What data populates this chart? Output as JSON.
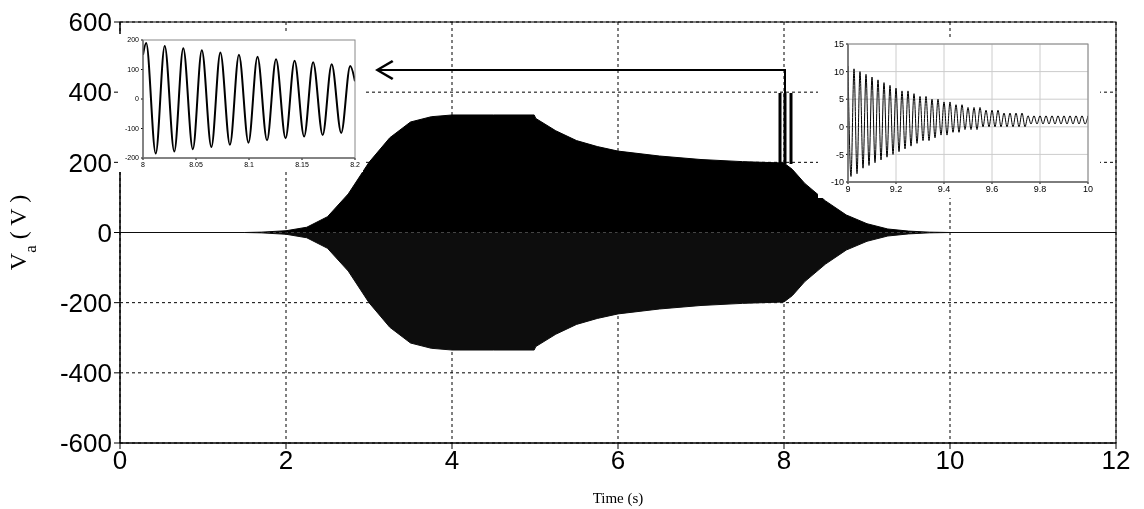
{
  "chart_data": [
    {
      "type": "area",
      "xlabel": "Time (s)",
      "ylabel": "V$_{a}$ ( V )",
      "x": [
        0,
        1.5,
        1.7,
        2,
        2.25,
        2.5,
        2.75,
        3,
        3.25,
        3.5,
        3.75,
        4,
        4.5,
        4.99,
        5.01,
        5.25,
        5.5,
        5.75,
        6,
        6.5,
        7,
        7.5,
        8,
        8.1,
        8.25,
        8.5,
        8.75,
        9,
        9.25,
        9.5,
        9.75,
        10,
        12
      ],
      "series": [
        {
          "color": "#000000",
          "values": [
            0,
            0,
            1,
            5,
            15,
            45,
            110,
            200,
            270,
            315,
            330,
            335,
            335,
            335,
            325,
            290,
            262,
            245,
            232,
            218,
            208,
            202,
            198,
            180,
            140,
            90,
            50,
            25,
            10,
            4,
            1,
            0,
            0
          ]
        },
        {
          "color": "#0d0d0d",
          "values": [
            0,
            0,
            -1,
            -5,
            -15,
            -45,
            -110,
            -200,
            -270,
            -315,
            -330,
            -335,
            -335,
            -335,
            -325,
            -290,
            -262,
            -245,
            -232,
            -218,
            -208,
            -202,
            -198,
            -180,
            -140,
            -90,
            -50,
            -25,
            -10,
            -4,
            -1,
            0,
            0
          ]
        }
      ],
      "xlim": [
        0,
        12
      ],
      "xticks": [
        0,
        2,
        4,
        6,
        8,
        10,
        12
      ],
      "ylim": [
        -600,
        600
      ],
      "yticks": [
        -600,
        -400,
        -200,
        0,
        200,
        400,
        600
      ],
      "grid": true
    },
    {
      "type": "line",
      "x": [
        8,
        8.003,
        8.012,
        8.0205,
        8.0295,
        8.038,
        8.047,
        8.0555,
        8.0645,
        8.073,
        8.082,
        8.0905,
        8.0995,
        8.108,
        8.117,
        8.1255,
        8.1345,
        8.143,
        8.152,
        8.1605,
        8.1695,
        8.178,
        8.187,
        8.1955,
        8.2
      ],
      "series": [
        {
          "color": "#000000",
          "values": [
            150,
            190,
            -185,
            180,
            -178,
            172,
            -170,
            165,
            -163,
            158,
            -155,
            150,
            -148,
            143,
            -140,
            135,
            -133,
            130,
            -127,
            125,
            -122,
            118,
            -115,
            112,
            60
          ]
        }
      ],
      "xlim": [
        8,
        8.2
      ],
      "xticks": [
        8,
        8.05,
        8.1,
        8.15,
        8.2
      ],
      "ylim": [
        -200,
        200
      ],
      "yticks": [
        -200,
        -100,
        0,
        100,
        200
      ]
    },
    {
      "type": "line",
      "x": [
        9,
        9.0125,
        9.025,
        9.0375,
        9.05,
        9.0625,
        9.075,
        9.0875,
        9.1,
        9.1125,
        9.125,
        9.1375,
        9.15,
        9.1625,
        9.175,
        9.1875,
        9.2,
        9.2125,
        9.225,
        9.2375,
        9.25,
        9.2625,
        9.275,
        9.2875,
        9.3,
        9.3125,
        9.325,
        9.3375,
        9.35,
        9.3625,
        9.375,
        9.3875,
        9.4,
        9.4125,
        9.425,
        9.4375,
        9.45,
        9.4625,
        9.475,
        9.4875,
        9.5,
        9.5125,
        9.525,
        9.5375,
        9.55,
        9.5625,
        9.575,
        9.5875,
        9.6,
        9.6125,
        9.625,
        9.6375,
        9.65,
        9.6625,
        9.675,
        9.6875,
        9.7,
        9.7125,
        9.725,
        9.7375,
        9.75,
        9.7625,
        9.775,
        9.7875,
        9.8,
        9.8125,
        9.825,
        9.8375,
        9.85,
        9.8625,
        9.875,
        9.8875,
        9.9,
        9.9125,
        9.925,
        9.9375,
        9.95,
        9.9625,
        9.975,
        9.9875,
        10
      ],
      "series": [
        {
          "color": "#000000",
          "values": [
            11,
            -9,
            10.5,
            -8.5,
            10,
            -7.5,
            9.5,
            -7,
            9,
            -6.5,
            8.5,
            -6,
            8,
            -5.5,
            7.5,
            -5,
            7,
            -4.5,
            6.5,
            -4,
            6.5,
            -3.5,
            6,
            -3,
            5.5,
            -2.5,
            5.5,
            -2.5,
            5,
            -2,
            5,
            -1.5,
            4.5,
            -1.5,
            4.5,
            -1,
            4,
            -1,
            4,
            -0.5,
            3.5,
            -0.5,
            3.5,
            -0.5,
            3.5,
            0,
            3,
            0,
            3,
            0,
            3,
            0,
            2.5,
            0,
            2.5,
            0,
            2.5,
            0,
            2.5,
            0,
            2,
            0.5,
            2,
            0.5,
            2,
            0.5,
            2,
            0.5,
            2,
            0.5,
            2,
            0.5,
            2,
            0.5,
            2,
            0.5,
            2,
            0.5,
            2,
            0.5,
            2
          ]
        }
      ],
      "xlim": [
        9,
        10
      ],
      "xticks": [
        9,
        9.2,
        9.4,
        9.6,
        9.8,
        10
      ],
      "ylim": [
        -10,
        15
      ],
      "yticks": [
        -10,
        -5,
        0,
        5,
        10,
        15
      ],
      "grid": true
    }
  ]
}
